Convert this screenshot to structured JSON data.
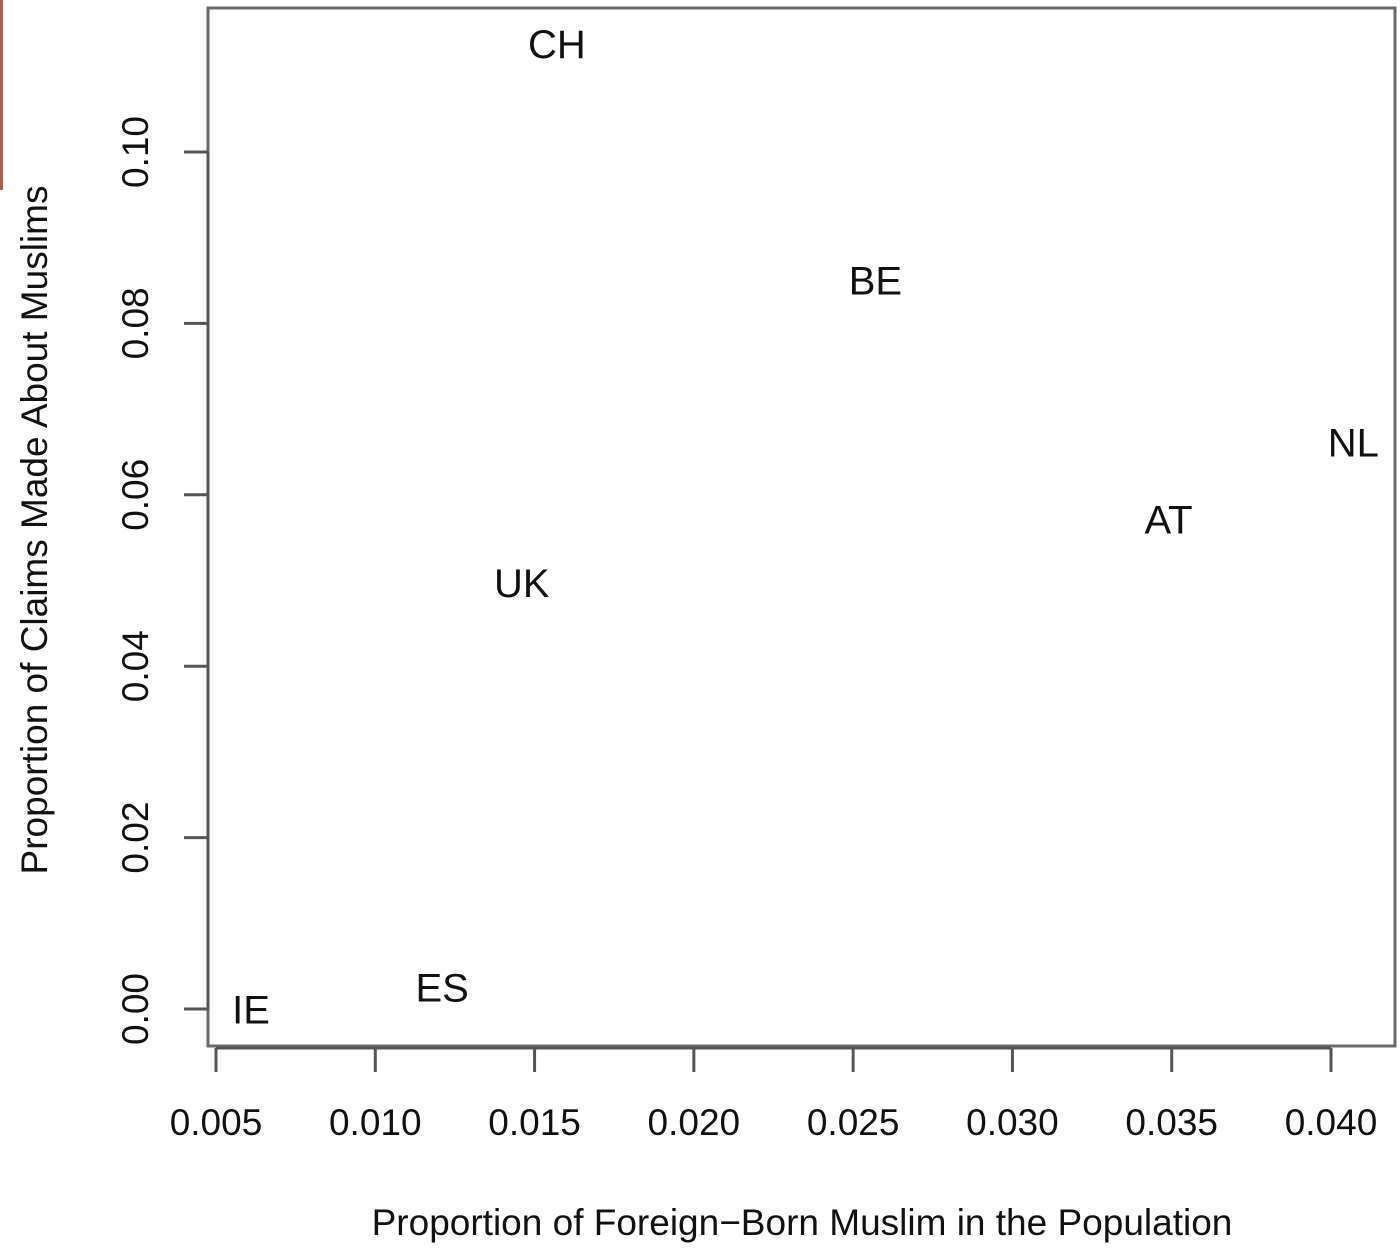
{
  "chart_data": {
    "type": "scatter",
    "title": "",
    "xlabel": "Proportion of Foreign−Born Muslim in the Population",
    "ylabel": "Proportion of Claims Made About Muslims",
    "xlim": [
      0.005,
      0.042
    ],
    "ylim": [
      -0.0045,
      0.117
    ],
    "xticks": [
      0.005,
      0.01,
      0.015,
      0.02,
      0.025,
      0.03,
      0.035,
      0.04
    ],
    "xtick_labels": [
      "0.005",
      "0.010",
      "0.015",
      "0.020",
      "0.025",
      "0.030",
      "0.035",
      "0.040"
    ],
    "yticks": [
      0.0,
      0.02,
      0.04,
      0.06,
      0.08,
      0.1
    ],
    "ytick_labels": [
      "0.00",
      "0.02",
      "0.04",
      "0.06",
      "0.08",
      "0.10"
    ],
    "grid": false,
    "marker": "text-label",
    "points": [
      {
        "label": "CH",
        "x": 0.0157,
        "y": 0.1125
      },
      {
        "label": "BE",
        "x": 0.0257,
        "y": 0.0849
      },
      {
        "label": "NL",
        "x": 0.0407,
        "y": 0.066
      },
      {
        "label": "AT",
        "x": 0.0349,
        "y": 0.057
      },
      {
        "label": "UK",
        "x": 0.0146,
        "y": 0.0496
      },
      {
        "label": "ES",
        "x": 0.0121,
        "y": 0.0024
      },
      {
        "label": "IE",
        "x": 0.0061,
        "y": -0.0002
      }
    ]
  },
  "colors": {
    "axis": "#555555",
    "text": "#111111",
    "background": "#ffffff"
  }
}
